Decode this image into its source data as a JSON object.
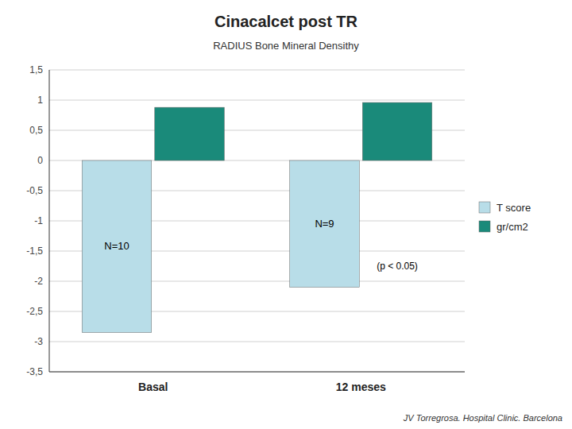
{
  "chart_data": {
    "type": "bar",
    "title": "Cinacalcet post TR",
    "subtitle": "RADIUS Bone Mineral Densithy",
    "categories": [
      "Basal",
      "12 meses"
    ],
    "series": [
      {
        "name": "T score",
        "color": "#b8dde8",
        "values": [
          -2.85,
          -2.1
        ]
      },
      {
        "name": "gr/cm2",
        "color": "#1a8a7a",
        "values": [
          0.88,
          0.96
        ]
      }
    ],
    "ylim": [
      -3.5,
      1.5
    ],
    "yticks": [
      {
        "value": -3.5,
        "label": "-3,5"
      },
      -3,
      {
        "value": -2.5,
        "label": "-2,5"
      },
      -2,
      {
        "value": -1.5,
        "label": "-1,5"
      },
      -1,
      {
        "value": -0.5,
        "label": "-0,5"
      },
      0,
      {
        "value": 0.5,
        "label": "0,5"
      },
      1,
      {
        "value": 1.5,
        "label": "1,5"
      }
    ],
    "grid": true,
    "legend": "right",
    "annotations": [
      {
        "text": "N=10",
        "series": "T score",
        "category": "Basal"
      },
      {
        "text": "N=9",
        "series": "T score",
        "category": "12 meses"
      },
      {
        "text": "(p < 0.05)",
        "category": "12 meses"
      },
      {
        "text": "JV Torregrosa. Hospital Clinic. Barcelona"
      }
    ]
  }
}
